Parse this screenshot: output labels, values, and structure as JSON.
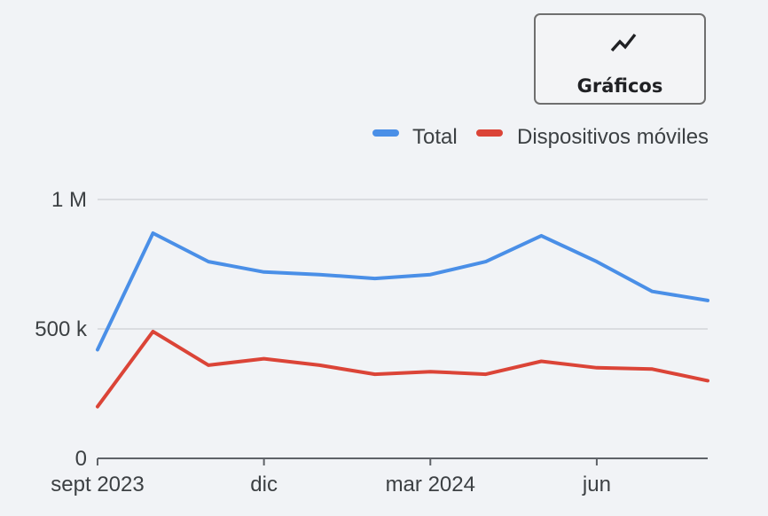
{
  "toolbar": {
    "charts_label": "Gráficos",
    "charts_icon": "line-chart-icon"
  },
  "chart_data": {
    "type": "line",
    "title": "",
    "xlabel": "",
    "ylabel": "",
    "ylim": [
      0,
      1000000
    ],
    "xlim": [
      "2023-09",
      "2024-08"
    ],
    "y_ticks": [
      {
        "value": 0,
        "label": "0"
      },
      {
        "value": 500000,
        "label": "500 k"
      },
      {
        "value": 1000000,
        "label": "1 M"
      }
    ],
    "x_ticks": [
      {
        "value": "2023-09",
        "label": "sept 2023"
      },
      {
        "value": "2023-12",
        "label": "dic"
      },
      {
        "value": "2024-03",
        "label": "mar 2024"
      },
      {
        "value": "2024-06",
        "label": "jun"
      }
    ],
    "x": [
      "2023-09",
      "2023-10",
      "2023-11",
      "2023-12",
      "2024-01",
      "2024-02",
      "2024-03",
      "2024-04",
      "2024-05",
      "2024-06",
      "2024-07",
      "2024-08"
    ],
    "series": [
      {
        "name": "Total",
        "color": "#4a8fe7",
        "values": [
          420000,
          870000,
          760000,
          720000,
          710000,
          695000,
          710000,
          760000,
          860000,
          760000,
          645000,
          610000
        ]
      },
      {
        "name": "Dispositivos móviles",
        "color": "#db4437",
        "values": [
          200000,
          490000,
          360000,
          385000,
          360000,
          325000,
          335000,
          325000,
          375000,
          350000,
          345000,
          300000
        ]
      }
    ],
    "grid": true,
    "legend_position": "top-right"
  }
}
